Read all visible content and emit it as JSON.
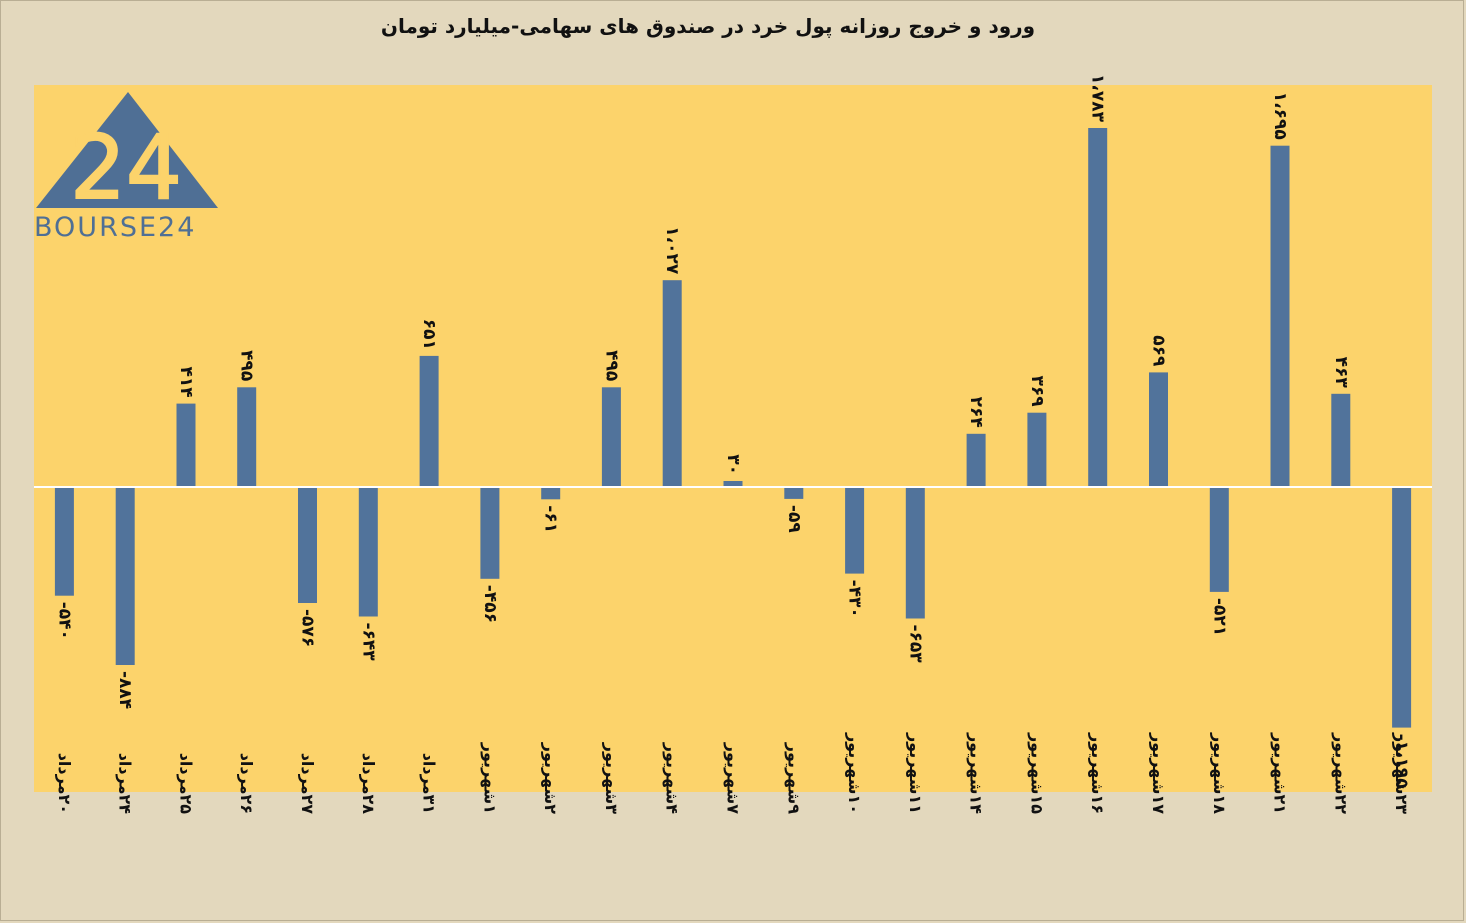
{
  "chart_data": {
    "type": "bar",
    "title": "ورود و خروج روزانه پول خرد در صندوق های سهامی-میلیارد تومان",
    "categories": [
      "۲۰مرداد",
      "۲۴مرداد",
      "۲۵مرداد",
      "۲۶مرداد",
      "۲۷مرداد",
      "۲۸مرداد",
      "۳۱مرداد",
      "۱شهریور",
      "۲شهریور",
      "۳شهریور",
      "۴شهریور",
      "۷شهریور",
      "۹شهریور",
      "۱۰شهریور",
      "۱۱شهریور",
      "۱۴شهریور",
      "۱۵شهریور",
      "۱۶شهریور",
      "۱۷شهریور",
      "۱۸شهریور",
      "۲۱شهریور",
      "۲۲شهریور",
      "۲۳شهریور"
    ],
    "values": [
      -540,
      -884,
      414,
      495,
      -576,
      -643,
      651,
      -456,
      -61,
      495,
      1027,
      30,
      -59,
      -430,
      -653,
      264,
      369,
      1783,
      569,
      -521,
      1695,
      463,
      -1195
    ],
    "value_labels": [
      "-۵۴۰",
      "-۸۸۴",
      "۴۱۴",
      "۴۹۵",
      "-۵۷۶",
      "-۶۴۳",
      "۶۵۱",
      "-۴۵۶",
      "-۶۱",
      "۴۹۵",
      "۱،۰۲۷",
      "۳۰",
      "-۵۹",
      "-۴۳۰",
      "-۶۵۳",
      "۲۶۴",
      "۳۶۹",
      "۱،۷۸۳",
      "۵۶۹",
      "-۵۲۱",
      "۱،۶۹۵",
      "۴۶۳",
      "-۱،۱۹۵"
    ],
    "ylim": [
      -1500,
      2000
    ],
    "grid": false,
    "colors": {
      "bar": "#51739b",
      "plot_background": "#fcd36b",
      "page_background": "#e3d8bd",
      "zero_line": "#ffffff"
    }
  },
  "logo": {
    "text": "BOURSE24",
    "mark": "24",
    "color": "#4f6f95"
  }
}
